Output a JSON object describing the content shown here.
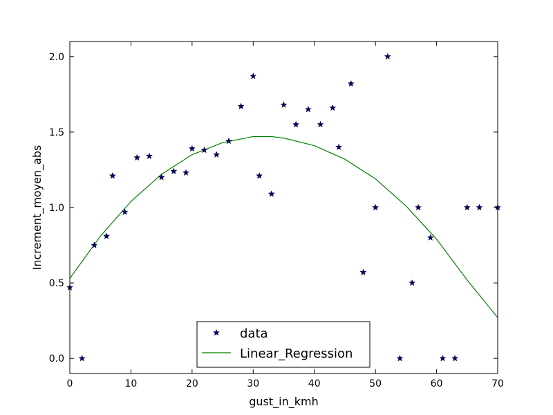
{
  "chart_data": {
    "type": "scatter",
    "xlabel": "gust_in_kmh",
    "ylabel": "Increment_moyen_abs",
    "xlim": [
      0,
      70
    ],
    "ylim": [
      -0.1,
      2.1
    ],
    "xticks": [
      0,
      10,
      20,
      30,
      40,
      50,
      60,
      70
    ],
    "yticks": [
      0.0,
      0.5,
      1.0,
      1.5,
      2.0
    ],
    "xtick_labels": [
      "0",
      "10",
      "20",
      "30",
      "40",
      "50",
      "60",
      "70"
    ],
    "ytick_labels": [
      "0.0",
      "0.5",
      "1.0",
      "1.5",
      "2.0"
    ],
    "grid": false,
    "legend_position": "bottom-center",
    "series": [
      {
        "name": "data",
        "kind": "scatter",
        "marker": "star",
        "color": "#000080",
        "x": [
          0,
          2,
          4,
          6,
          7,
          9,
          11,
          13,
          15,
          17,
          19,
          20,
          22,
          24,
          26,
          28,
          30,
          31,
          33,
          35,
          37,
          39,
          41,
          43,
          44,
          46,
          48,
          50,
          52,
          54,
          56,
          57,
          59,
          61,
          63,
          65,
          67,
          70
        ],
        "y": [
          0.47,
          0.0,
          0.75,
          0.81,
          1.21,
          0.97,
          1.33,
          1.34,
          1.2,
          1.24,
          1.23,
          1.39,
          1.38,
          1.35,
          1.44,
          1.67,
          1.87,
          1.21,
          1.09,
          1.68,
          1.55,
          1.65,
          1.55,
          1.66,
          1.4,
          1.82,
          0.57,
          1.0,
          2.0,
          0.0,
          0.5,
          1.0,
          0.8,
          0.0,
          0.0,
          1.0,
          1.0,
          1.0
        ]
      },
      {
        "name": "Linear_Regression",
        "kind": "line",
        "color": "#008000",
        "x": [
          0,
          5,
          10,
          15,
          20,
          25,
          30,
          33,
          35,
          40,
          45,
          50,
          55,
          60,
          65,
          70
        ],
        "y": [
          0.53,
          0.81,
          1.04,
          1.22,
          1.35,
          1.43,
          1.47,
          1.47,
          1.46,
          1.41,
          1.32,
          1.19,
          1.01,
          0.79,
          0.52,
          0.27
        ]
      }
    ]
  }
}
